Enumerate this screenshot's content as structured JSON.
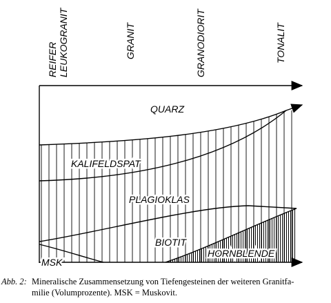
{
  "rock_types": [
    {
      "lines": [
        "REIFER",
        "LEUKOGRANIT"
      ]
    },
    {
      "lines": [
        "GRANIT"
      ]
    },
    {
      "lines": [
        "GRANODIORIT"
      ]
    },
    {
      "lines": [
        "TONALIT"
      ]
    }
  ],
  "minerals": {
    "quarz": "QUARZ",
    "kalifeldspat": "KALIFELDSPAT",
    "plagioklas": "PLAGIOKLAS",
    "biotit": "BIOTIT",
    "hornblende": "HORNBLENDE",
    "msk": "MSK"
  },
  "caption": {
    "label": "Abb. 2:",
    "lines": [
      "Mineralische Zusammensetzung von Tiefengesteinen der weiteren Granitfa-",
      "milie (Volumprozente). MSK = Muskovit."
    ]
  }
}
